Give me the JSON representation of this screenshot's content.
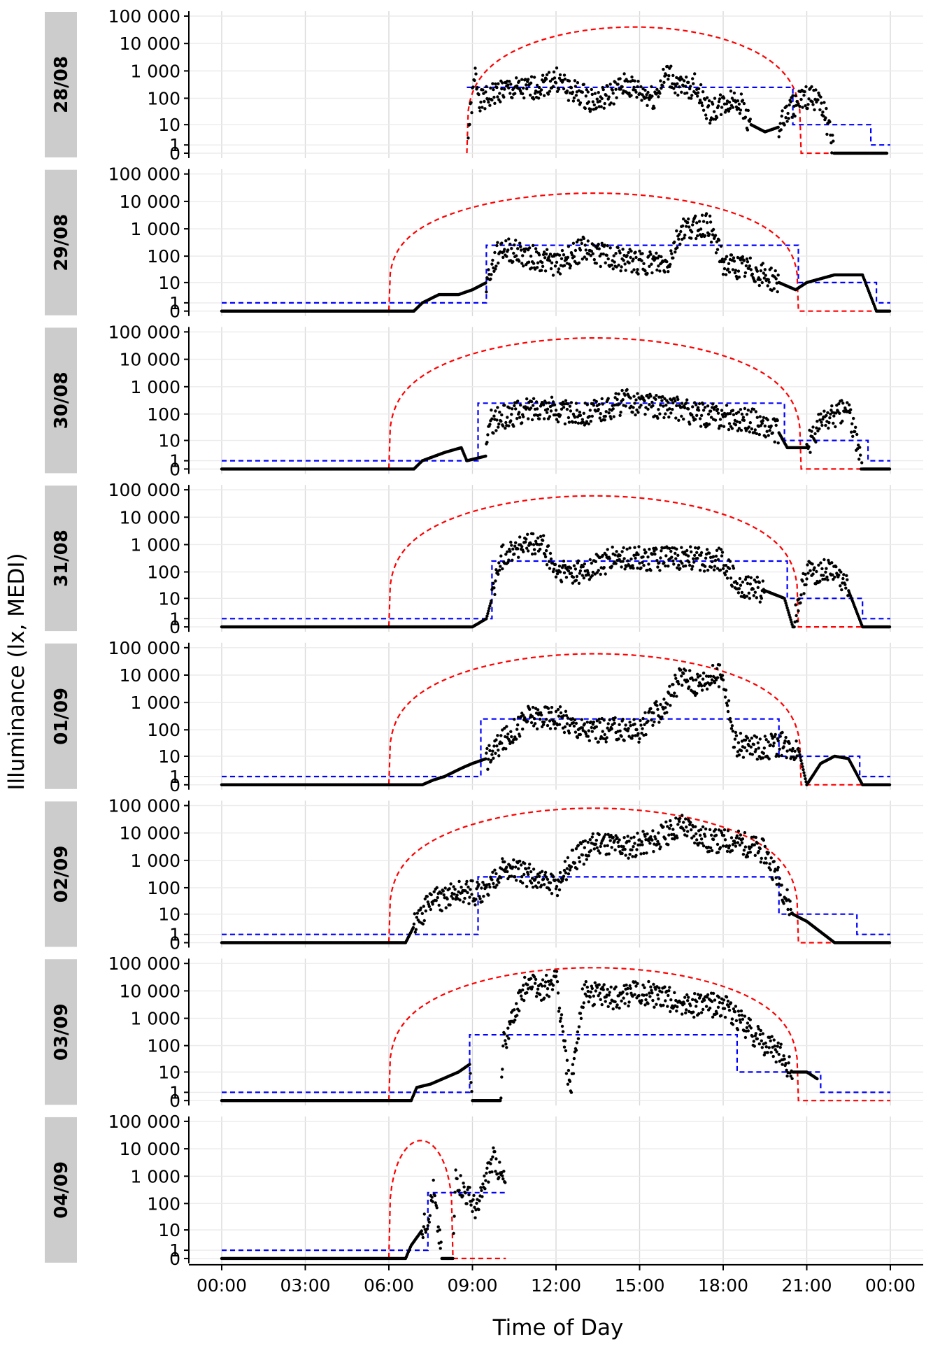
{
  "chart_data": {
    "type": "line",
    "layout": "faceted",
    "xlabel": "Time of Day",
    "ylabel": "Illuminance (lx, MEDI)",
    "x_unit": "hours",
    "x_ticks": [
      "00:00",
      "03:00",
      "06:00",
      "09:00",
      "12:00",
      "15:00",
      "18:00",
      "21:00",
      "00:00"
    ],
    "xlim": [
      0,
      24
    ],
    "y_scale": "symlog",
    "y_tick_values": [
      0,
      1,
      10,
      100,
      1000,
      10000,
      100000
    ],
    "y_tick_labels": [
      "0",
      "1",
      "10",
      "100",
      "1 000",
      "10 000",
      "100 000"
    ],
    "ylim": [
      0,
      100000
    ],
    "grid": true,
    "legend": "none",
    "colors": {
      "measured": "#000000",
      "daylight": "#ff0000",
      "recommendation": "#0000ff",
      "strip": "#cccccc"
    },
    "recommendation_steps": [
      [
        0,
        1
      ],
      [
        9.2,
        250
      ],
      [
        18.5,
        10
      ],
      [
        21.0,
        10
      ],
      [
        23.0,
        1
      ]
    ],
    "panels": [
      {
        "label": "28/08",
        "data_start": 8.8,
        "daylight": {
          "sunrise": 8.8,
          "sunset": 20.8,
          "peak": 40000
        },
        "recommendation": [
          [
            8.8,
            250
          ],
          [
            20.5,
            10
          ],
          [
            23.3,
            1
          ]
        ],
        "measured": [
          [
            8.85,
            5
          ],
          [
            9.1,
            700
          ],
          [
            9.3,
            70
          ],
          [
            10.0,
            200
          ],
          [
            11.0,
            200
          ],
          [
            12.0,
            500
          ],
          [
            12.5,
            200
          ],
          [
            13.5,
            70
          ],
          [
            14.5,
            300
          ],
          [
            15.5,
            100
          ],
          [
            16.0,
            800
          ],
          [
            16.5,
            200
          ],
          [
            17.0,
            300
          ],
          [
            17.5,
            30
          ],
          [
            18.0,
            60
          ],
          [
            18.5,
            100
          ],
          [
            19.0,
            10
          ],
          [
            19.5,
            5
          ],
          [
            20.0,
            8
          ],
          [
            20.5,
            50
          ],
          [
            21.0,
            100
          ],
          [
            21.5,
            100
          ],
          [
            22.0,
            0
          ],
          [
            23.9,
            0
          ]
        ]
      },
      {
        "label": "29/08",
        "data_start": 0,
        "daylight": {
          "sunrise": 6.0,
          "sunset": 20.7,
          "peak": 20000
        },
        "recommendation": [
          [
            0,
            1
          ],
          [
            9.5,
            250
          ],
          [
            20.7,
            10
          ],
          [
            23.5,
            1
          ]
        ],
        "measured": [
          [
            0,
            0
          ],
          [
            6.9,
            0
          ],
          [
            7.2,
            1
          ],
          [
            7.8,
            3
          ],
          [
            8.5,
            3
          ],
          [
            9.0,
            5
          ],
          [
            9.5,
            10
          ],
          [
            10.0,
            200
          ],
          [
            11.0,
            100
          ],
          [
            12.0,
            50
          ],
          [
            13.0,
            200
          ],
          [
            14.0,
            80
          ],
          [
            15.0,
            60
          ],
          [
            16.0,
            50
          ],
          [
            16.5,
            1000
          ],
          [
            17.5,
            1500
          ],
          [
            18.0,
            50
          ],
          [
            19.0,
            30
          ],
          [
            20.0,
            10
          ],
          [
            20.6,
            5
          ],
          [
            21.0,
            10
          ],
          [
            22.0,
            20
          ],
          [
            23.0,
            20
          ],
          [
            23.5,
            0
          ],
          [
            24.0,
            0
          ]
        ]
      },
      {
        "label": "30/08",
        "data_start": 0,
        "daylight": {
          "sunrise": 6.0,
          "sunset": 20.8,
          "peak": 60000
        },
        "recommendation": [
          [
            0,
            1
          ],
          [
            9.2,
            250
          ],
          [
            20.2,
            10
          ],
          [
            23.2,
            1
          ]
        ],
        "measured": [
          [
            0,
            0
          ],
          [
            6.9,
            0
          ],
          [
            7.2,
            1
          ],
          [
            8.0,
            3
          ],
          [
            8.6,
            5
          ],
          [
            8.8,
            1
          ],
          [
            9.5,
            2
          ],
          [
            9.6,
            50
          ],
          [
            10.5,
            100
          ],
          [
            11.5,
            200
          ],
          [
            12.5,
            100
          ],
          [
            13.5,
            120
          ],
          [
            14.5,
            300
          ],
          [
            15.5,
            200
          ],
          [
            16.5,
            150
          ],
          [
            17.0,
            100
          ],
          [
            18.0,
            80
          ],
          [
            19.0,
            60
          ],
          [
            20.0,
            20
          ],
          [
            20.3,
            5
          ],
          [
            21.0,
            5
          ],
          [
            21.5,
            50
          ],
          [
            22.5,
            150
          ],
          [
            23.0,
            0
          ],
          [
            24.0,
            0
          ]
        ]
      },
      {
        "label": "31/08",
        "data_start": 0,
        "daylight": {
          "sunrise": 6.0,
          "sunset": 20.7,
          "peak": 60000
        },
        "recommendation": [
          [
            0,
            1
          ],
          [
            9.7,
            250
          ],
          [
            20.3,
            10
          ],
          [
            23.0,
            1
          ]
        ],
        "measured": [
          [
            0,
            0
          ],
          [
            8.5,
            0
          ],
          [
            9.0,
            0
          ],
          [
            9.5,
            1
          ],
          [
            9.7,
            10
          ],
          [
            10.0,
            300
          ],
          [
            10.5,
            800
          ],
          [
            11.5,
            1000
          ],
          [
            12.0,
            100
          ],
          [
            13.0,
            100
          ],
          [
            14.0,
            300
          ],
          [
            15.0,
            300
          ],
          [
            16.0,
            300
          ],
          [
            17.0,
            300
          ],
          [
            18.0,
            300
          ],
          [
            18.5,
            30
          ],
          [
            19.5,
            20
          ],
          [
            20.2,
            10
          ],
          [
            20.5,
            0
          ],
          [
            21.0,
            100
          ],
          [
            22.0,
            100
          ],
          [
            22.5,
            20
          ],
          [
            23.0,
            0
          ],
          [
            24.0,
            0
          ]
        ]
      },
      {
        "label": "01/09",
        "data_start": 0,
        "daylight": {
          "sunrise": 6.0,
          "sunset": 20.8,
          "peak": 60000
        },
        "recommendation": [
          [
            0,
            1
          ],
          [
            9.3,
            250
          ],
          [
            20.0,
            10
          ],
          [
            22.9,
            1
          ]
        ],
        "measured": [
          [
            0,
            0
          ],
          [
            7.2,
            0
          ],
          [
            7.6,
            0.5
          ],
          [
            8.0,
            1
          ],
          [
            8.6,
            3
          ],
          [
            9.0,
            5
          ],
          [
            9.5,
            8
          ],
          [
            10.0,
            30
          ],
          [
            11.0,
            300
          ],
          [
            12.0,
            300
          ],
          [
            13.0,
            100
          ],
          [
            14.0,
            100
          ],
          [
            15.0,
            100
          ],
          [
            16.0,
            1000
          ],
          [
            16.5,
            10000
          ],
          [
            17.0,
            5000
          ],
          [
            17.5,
            8000
          ],
          [
            18.0,
            10000
          ],
          [
            18.4,
            30
          ],
          [
            19.5,
            20
          ],
          [
            20.0,
            30
          ],
          [
            20.7,
            20
          ],
          [
            21.0,
            0
          ],
          [
            21.5,
            5
          ],
          [
            22.0,
            10
          ],
          [
            22.5,
            8
          ],
          [
            23.0,
            0
          ],
          [
            24.0,
            0
          ]
        ]
      },
      {
        "label": "02/09",
        "data_start": 0,
        "daylight": {
          "sunrise": 6.0,
          "sunset": 20.7,
          "peak": 80000
        },
        "recommendation": [
          [
            0,
            1
          ],
          [
            9.2,
            250
          ],
          [
            20.0,
            10
          ],
          [
            22.8,
            1
          ]
        ],
        "measured": [
          [
            0,
            0
          ],
          [
            6.6,
            0
          ],
          [
            6.9,
            3
          ],
          [
            7.5,
            30
          ],
          [
            8.5,
            60
          ],
          [
            9.5,
            70
          ],
          [
            10.0,
            500
          ],
          [
            11.0,
            300
          ],
          [
            12.0,
            100
          ],
          [
            12.6,
            1000
          ],
          [
            13.5,
            5000
          ],
          [
            14.5,
            3000
          ],
          [
            15.5,
            5000
          ],
          [
            16.5,
            20000
          ],
          [
            17.5,
            5000
          ],
          [
            18.5,
            5000
          ],
          [
            19.5,
            2000
          ],
          [
            20.0,
            200
          ],
          [
            20.5,
            10
          ],
          [
            21.0,
            5
          ],
          [
            22.0,
            0
          ],
          [
            23.0,
            0
          ],
          [
            24.0,
            0
          ]
        ]
      },
      {
        "label": "03/09",
        "data_start": 0,
        "daylight": {
          "sunrise": 6.0,
          "sunset": 20.7,
          "peak": 70000
        },
        "recommendation": [
          [
            0,
            1
          ],
          [
            8.9,
            250
          ],
          [
            18.5,
            10
          ],
          [
            21.5,
            1
          ]
        ],
        "measured": [
          [
            0,
            0
          ],
          [
            6.8,
            0
          ],
          [
            7.0,
            2
          ],
          [
            7.5,
            3
          ],
          [
            8.5,
            10
          ],
          [
            8.9,
            20
          ],
          [
            9.0,
            0
          ],
          [
            10.0,
            0
          ],
          [
            10.1,
            100
          ],
          [
            11.0,
            30000
          ],
          [
            11.5,
            10000
          ],
          [
            12.0,
            30000
          ],
          [
            12.5,
            1
          ],
          [
            13.0,
            10000
          ],
          [
            14.0,
            5000
          ],
          [
            15.0,
            10000
          ],
          [
            16.0,
            5000
          ],
          [
            17.0,
            3000
          ],
          [
            18.0,
            3000
          ],
          [
            19.0,
            300
          ],
          [
            20.0,
            50
          ],
          [
            20.5,
            10
          ],
          [
            21.0,
            10
          ],
          [
            21.4,
            5
          ]
        ]
      },
      {
        "label": "04/09",
        "data_start": 0,
        "data_end": 10.2,
        "daylight": {
          "sunrise": 6.0,
          "sunset": 8.3,
          "peak": 20000
        },
        "recommendation": [
          [
            0,
            1
          ],
          [
            7.4,
            250
          ],
          [
            10.2,
            250
          ]
        ],
        "measured": [
          [
            0,
            0
          ],
          [
            6.6,
            0
          ],
          [
            6.8,
            2
          ],
          [
            7.2,
            10
          ],
          [
            7.4,
            30
          ],
          [
            7.6,
            300
          ],
          [
            7.9,
            0
          ],
          [
            8.3,
            0
          ],
          [
            8.4,
            1000
          ],
          [
            8.8,
            200
          ],
          [
            9.2,
            50
          ],
          [
            9.5,
            1000
          ],
          [
            9.8,
            5000
          ],
          [
            10.0,
            1000
          ],
          [
            10.2,
            500
          ]
        ]
      }
    ]
  }
}
